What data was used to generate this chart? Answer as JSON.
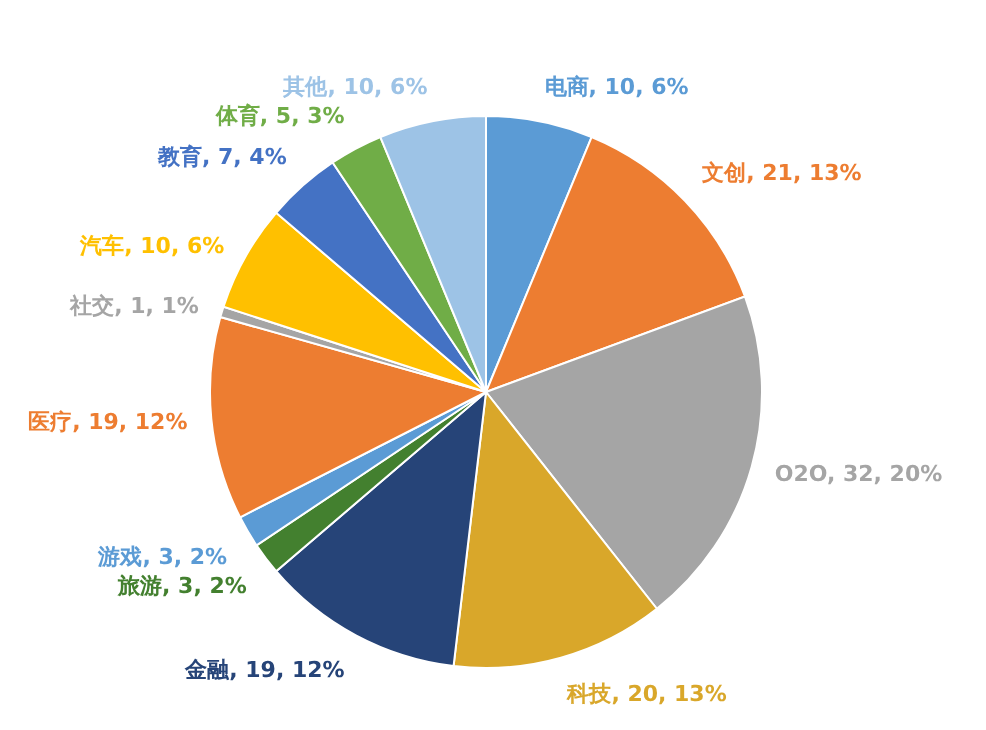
{
  "chart_data": {
    "type": "pie",
    "categories": [
      "电商",
      "文创",
      "O2O",
      "科技",
      "金融",
      "旅游",
      "游戏",
      "医疗",
      "社交",
      "汽车",
      "教育",
      "体育",
      "其他"
    ],
    "values": [
      10,
      21,
      32,
      20,
      19,
      3,
      3,
      19,
      1,
      10,
      7,
      5,
      10
    ],
    "value_labels": [
      "10, 6%",
      "21, 13%",
      "32, 20%",
      "20, 13%",
      "19, 12%",
      "3, 2%",
      "3, 2%",
      "19, 12%",
      "1, 1%",
      "10, 6%",
      "7, 4%",
      "5, 3%",
      "10, 6%"
    ],
    "colors": [
      "#5b9bd5",
      "#ed7d31",
      "#a5a5a5",
      "#d9a72a",
      "#264478",
      "#43802f",
      "#5b9bd5",
      "#ed7d31",
      "#a5a5a5",
      "#ffc000",
      "#4472c4",
      "#70ad47",
      "#9dc3e6"
    ],
    "legend": false
  }
}
